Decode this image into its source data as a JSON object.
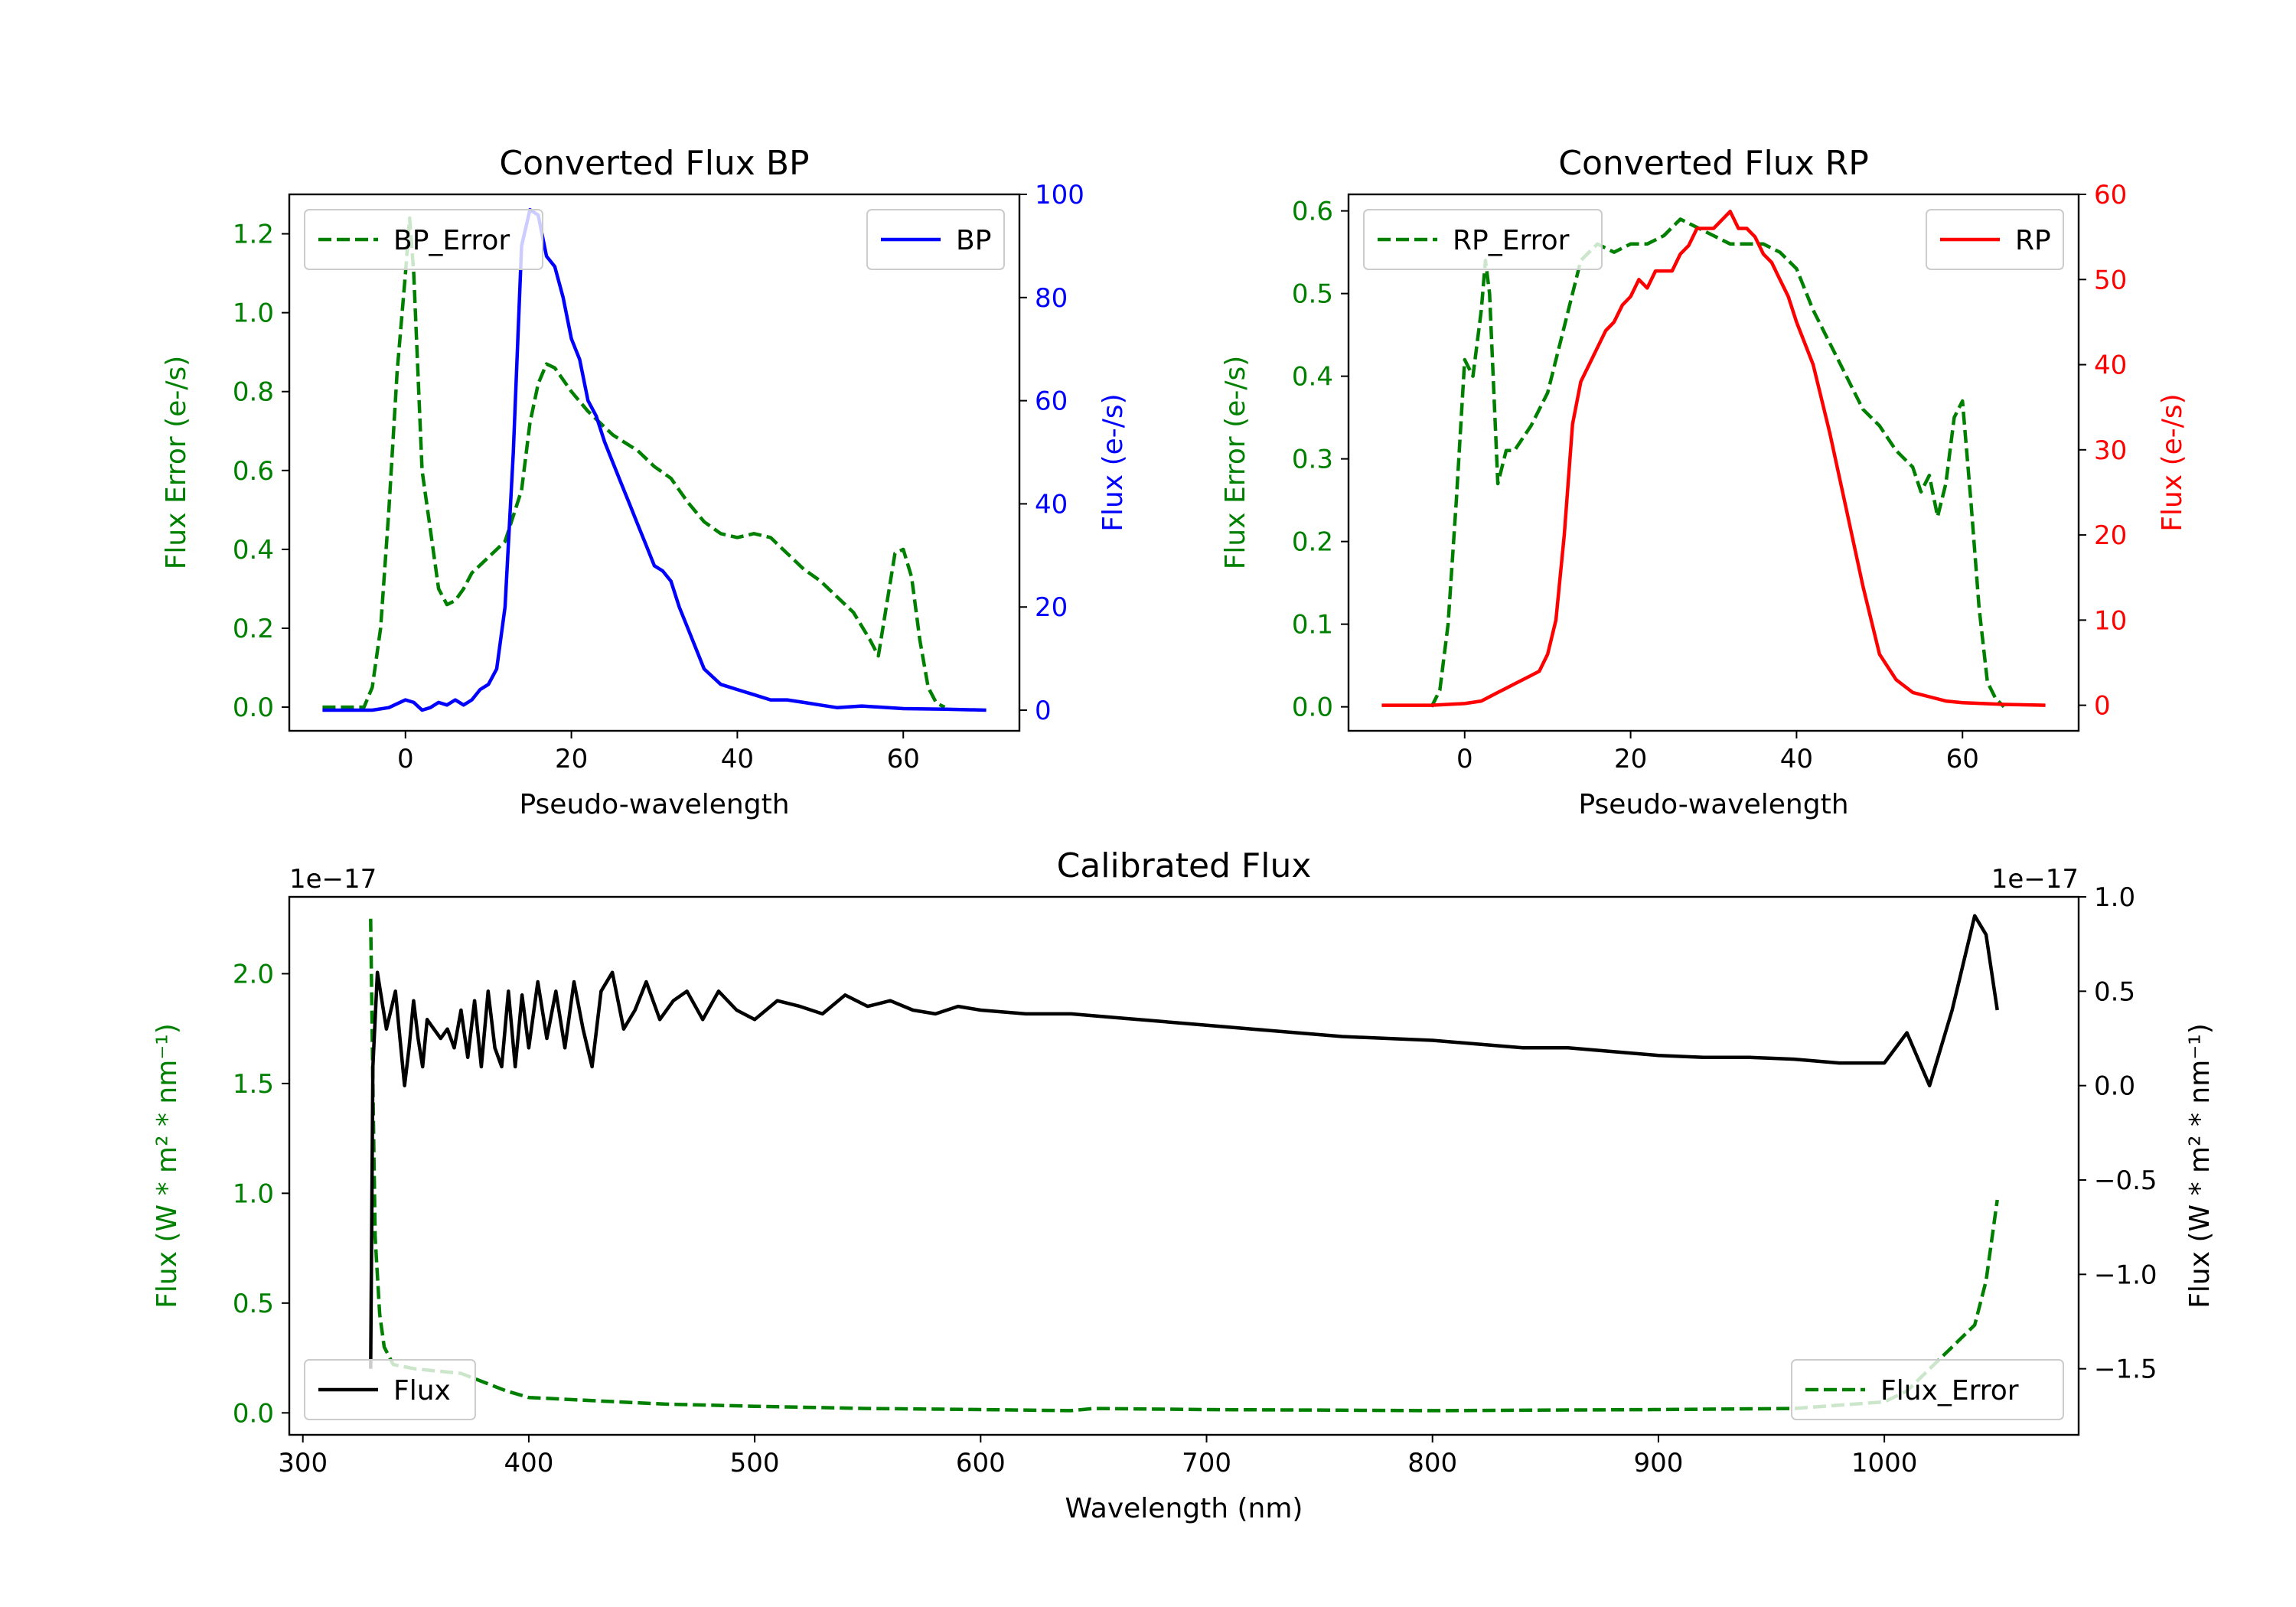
{
  "chart_data": [
    {
      "type": "line",
      "title": "Converted Flux BP",
      "xlabel": "Pseudo-wavelength",
      "ylabel_left": "Flux Error (e-/s)",
      "ylabel_right": "Flux (e-/s)",
      "xlim": [
        -14,
        74
      ],
      "ylim_left": [
        -0.06,
        1.3
      ],
      "ylim_right": [
        -4,
        100
      ],
      "x_ticks": [
        0,
        20,
        40,
        60
      ],
      "y_ticks_left": [
        0.0,
        0.2,
        0.4,
        0.6,
        0.8,
        1.0,
        1.2
      ],
      "y_ticks_left_labels": [
        "0.0",
        "0.2",
        "0.4",
        "0.6",
        "0.8",
        "1.0",
        "1.2"
      ],
      "y_ticks_right": [
        0,
        20,
        40,
        60,
        80,
        100
      ],
      "y_ticks_right_labels": [
        "0",
        "20",
        "40",
        "60",
        "80",
        "100"
      ],
      "left_color": "#008000",
      "right_color": "#0000ff",
      "left_legend": {
        "label": "BP_Error",
        "location": "upper left"
      },
      "right_legend": {
        "label": "BP",
        "location": "upper right"
      },
      "series": [
        {
          "name": "BP_Error",
          "axis": "left",
          "style": "dashed",
          "color": "#008000",
          "x": [
            -10,
            -5,
            -4,
            -3,
            -2,
            -1,
            0,
            0.5,
            1,
            2,
            3,
            4,
            5,
            6,
            7,
            8,
            10,
            12,
            14,
            15,
            16,
            17,
            18,
            19,
            20,
            22,
            25,
            28,
            30,
            32,
            34,
            36,
            38,
            40,
            42,
            44,
            46,
            48,
            50,
            52,
            54,
            56,
            57,
            58,
            59,
            60,
            61,
            62,
            63,
            64,
            65
          ],
          "y": [
            0.0,
            0.0,
            0.05,
            0.2,
            0.5,
            0.85,
            1.1,
            1.24,
            1.1,
            0.6,
            0.45,
            0.3,
            0.26,
            0.27,
            0.3,
            0.34,
            0.38,
            0.42,
            0.55,
            0.72,
            0.82,
            0.87,
            0.86,
            0.83,
            0.8,
            0.75,
            0.69,
            0.65,
            0.61,
            0.58,
            0.52,
            0.47,
            0.44,
            0.43,
            0.44,
            0.43,
            0.39,
            0.35,
            0.32,
            0.28,
            0.24,
            0.17,
            0.13,
            0.26,
            0.39,
            0.4,
            0.33,
            0.17,
            0.05,
            0.01,
            0.0
          ]
        },
        {
          "name": "BP",
          "axis": "right",
          "style": "solid",
          "color": "#0000ff",
          "x": [
            -10,
            -4,
            -2,
            0,
            1,
            2,
            3,
            4,
            5,
            6,
            7,
            8,
            9,
            10,
            11,
            12,
            13,
            14,
            15,
            16,
            17,
            18,
            19,
            20,
            21,
            22,
            23,
            24,
            25,
            26,
            27,
            28,
            29,
            30,
            31,
            32,
            33,
            34,
            35,
            36,
            38,
            40,
            42,
            44,
            46,
            48,
            50,
            52,
            55,
            60,
            65,
            70
          ],
          "y": [
            0,
            0,
            0.5,
            2,
            1.5,
            0,
            0.5,
            1.5,
            1,
            2,
            1,
            2,
            4,
            5,
            8,
            20,
            50,
            90,
            97,
            96,
            88,
            86,
            80,
            72,
            68,
            60,
            57,
            52,
            48,
            44,
            40,
            36,
            32,
            28,
            27,
            25,
            20,
            16,
            12,
            8,
            5,
            4,
            3,
            2,
            2,
            1.5,
            1,
            0.5,
            0.8,
            0.3,
            0.2,
            0
          ]
        }
      ]
    },
    {
      "type": "line",
      "title": "Converted Flux RP",
      "xlabel": "Pseudo-wavelength",
      "ylabel_left": "Flux Error (e-/s)",
      "ylabel_right": "Flux (e-/s)",
      "xlim": [
        -14,
        74
      ],
      "ylim_left": [
        -0.029,
        0.62
      ],
      "ylim_right": [
        -3,
        60
      ],
      "x_ticks": [
        0,
        20,
        40,
        60
      ],
      "y_ticks_left": [
        0.0,
        0.1,
        0.2,
        0.3,
        0.4,
        0.5,
        0.6
      ],
      "y_ticks_left_labels": [
        "0.0",
        "0.1",
        "0.2",
        "0.3",
        "0.4",
        "0.5",
        "0.6"
      ],
      "y_ticks_right": [
        0,
        10,
        20,
        30,
        40,
        50,
        60
      ],
      "y_ticks_right_labels": [
        "0",
        "10",
        "20",
        "30",
        "40",
        "50",
        "60"
      ],
      "left_color": "#008000",
      "right_color": "#ff0000",
      "left_legend": {
        "label": "RP_Error",
        "location": "upper left"
      },
      "right_legend": {
        "label": "RP",
        "location": "upper right"
      },
      "series": [
        {
          "name": "RP_Error",
          "axis": "left",
          "style": "dashed",
          "color": "#008000",
          "x": [
            -4,
            -3,
            -2,
            -1,
            0,
            1,
            2,
            2.5,
            3,
            4,
            5,
            6,
            8,
            10,
            12,
            14,
            16,
            18,
            20,
            22,
            24,
            26,
            28,
            30,
            32,
            34,
            36,
            38,
            40,
            42,
            44,
            46,
            48,
            50,
            52,
            54,
            55,
            56,
            57,
            58,
            59,
            60,
            61,
            62,
            63,
            64,
            65
          ],
          "y": [
            0.0,
            0.02,
            0.1,
            0.25,
            0.42,
            0.4,
            0.48,
            0.54,
            0.5,
            0.27,
            0.31,
            0.31,
            0.34,
            0.38,
            0.46,
            0.54,
            0.56,
            0.55,
            0.56,
            0.56,
            0.57,
            0.59,
            0.58,
            0.57,
            0.56,
            0.56,
            0.56,
            0.55,
            0.53,
            0.48,
            0.44,
            0.4,
            0.36,
            0.34,
            0.31,
            0.29,
            0.26,
            0.28,
            0.23,
            0.27,
            0.35,
            0.37,
            0.25,
            0.12,
            0.03,
            0.01,
            0.0
          ]
        },
        {
          "name": "RP",
          "axis": "right",
          "style": "solid",
          "color": "#ff0000",
          "x": [
            -10,
            -4,
            0,
            2,
            3,
            4,
            5,
            6,
            7,
            8,
            9,
            10,
            11,
            12,
            13,
            14,
            15,
            16,
            17,
            18,
            19,
            20,
            21,
            22,
            23,
            24,
            25,
            26,
            27,
            28,
            29,
            30,
            31,
            32,
            33,
            34,
            35,
            36,
            37,
            38,
            39,
            40,
            42,
            44,
            46,
            48,
            50,
            52,
            54,
            56,
            58,
            60,
            65,
            70
          ],
          "y": [
            0,
            0,
            0.2,
            0.5,
            1,
            1.5,
            2,
            2.5,
            3,
            3.5,
            4,
            6,
            10,
            20,
            33,
            38,
            40,
            42,
            44,
            45,
            47,
            48,
            50,
            49,
            51,
            51,
            51,
            53,
            54,
            56,
            56,
            56,
            57,
            58,
            56,
            56,
            55,
            53,
            52,
            50,
            48,
            45,
            40,
            32,
            23,
            14,
            6,
            3,
            1.5,
            1,
            0.5,
            0.3,
            0.1,
            0
          ]
        }
      ]
    },
    {
      "type": "line",
      "title": "Calibrated Flux",
      "xlabel": "Wavelength (nm)",
      "ylabel_left": "Flux (W * m² * nm⁻¹)",
      "ylabel_right": "Flux (W * m² * nm⁻¹)",
      "offset_left": "1e−17",
      "offset_right": "1e−17",
      "xlim": [
        294,
        1086
      ],
      "ylim_left": [
        -0.1,
        2.35
      ],
      "ylim_right": [
        -1.85,
        1.0
      ],
      "x_ticks": [
        300,
        400,
        500,
        600,
        700,
        800,
        900,
        1000
      ],
      "y_ticks_left": [
        0.0,
        0.5,
        1.0,
        1.5,
        2.0
      ],
      "y_ticks_left_labels": [
        "0.0",
        "0.5",
        "1.0",
        "1.5",
        "2.0"
      ],
      "y_ticks_right": [
        -1.5,
        -1.0,
        -0.5,
        0.0,
        0.5,
        1.0
      ],
      "y_ticks_right_labels": [
        "−1.5",
        "−1.0",
        "−0.5",
        "0.0",
        "0.5",
        "1.0"
      ],
      "left_color": "#008000",
      "right_color": "#000000",
      "left_legend": {
        "label": "Flux",
        "location": "lower left"
      },
      "right_legend": {
        "label": "Flux_Error",
        "location": "lower right"
      },
      "series": [
        {
          "name": "Flux_Error",
          "axis": "left",
          "style": "dashed",
          "color": "#008000",
          "x": [
            330,
            331,
            332,
            334,
            336,
            340,
            350,
            360,
            370,
            380,
            390,
            400,
            420,
            440,
            460,
            500,
            550,
            600,
            640,
            650,
            700,
            800,
            900,
            960,
            1000,
            1010,
            1020,
            1030,
            1040,
            1045,
            1050
          ],
          "y": [
            2.25,
            1.5,
            0.8,
            0.45,
            0.3,
            0.22,
            0.2,
            0.19,
            0.18,
            0.14,
            0.1,
            0.07,
            0.06,
            0.05,
            0.04,
            0.03,
            0.02,
            0.015,
            0.01,
            0.02,
            0.015,
            0.01,
            0.015,
            0.02,
            0.05,
            0.1,
            0.2,
            0.3,
            0.4,
            0.6,
            0.97
          ]
        },
        {
          "name": "Flux",
          "axis": "right",
          "style": "solid",
          "color": "#000000",
          "x": [
            330,
            331,
            333,
            335,
            337,
            339,
            341,
            343,
            345,
            347,
            349,
            351,
            353,
            355,
            358,
            361,
            364,
            367,
            370,
            373,
            376,
            379,
            382,
            385,
            388,
            391,
            394,
            397,
            400,
            404,
            408,
            412,
            416,
            420,
            424,
            428,
            432,
            437,
            442,
            447,
            452,
            458,
            464,
            470,
            477,
            484,
            492,
            500,
            510,
            520,
            530,
            540,
            550,
            560,
            570,
            580,
            590,
            600,
            620,
            640,
            660,
            680,
            700,
            720,
            740,
            760,
            780,
            800,
            820,
            840,
            860,
            880,
            900,
            920,
            940,
            960,
            980,
            1000,
            1010,
            1020,
            1030,
            1040,
            1045,
            1050
          ],
          "y": [
            -1.5,
            0.1,
            0.6,
            0.45,
            0.3,
            0.4,
            0.5,
            0.25,
            0.0,
            0.2,
            0.45,
            0.25,
            0.1,
            0.35,
            0.3,
            0.25,
            0.3,
            0.2,
            0.4,
            0.15,
            0.45,
            0.1,
            0.5,
            0.2,
            0.1,
            0.5,
            0.1,
            0.48,
            0.2,
            0.55,
            0.25,
            0.5,
            0.2,
            0.55,
            0.3,
            0.1,
            0.5,
            0.6,
            0.3,
            0.4,
            0.55,
            0.35,
            0.45,
            0.5,
            0.35,
            0.5,
            0.4,
            0.35,
            0.45,
            0.42,
            0.38,
            0.48,
            0.42,
            0.45,
            0.4,
            0.38,
            0.42,
            0.4,
            0.38,
            0.38,
            0.36,
            0.34,
            0.32,
            0.3,
            0.28,
            0.26,
            0.25,
            0.24,
            0.22,
            0.2,
            0.2,
            0.18,
            0.16,
            0.15,
            0.15,
            0.14,
            0.12,
            0.12,
            0.28,
            0.0,
            0.4,
            0.9,
            0.8,
            0.4
          ]
        }
      ]
    }
  ]
}
